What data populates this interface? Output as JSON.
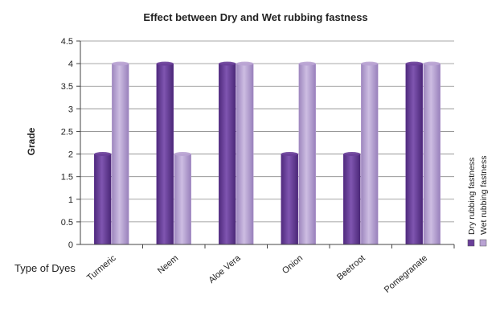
{
  "chart_data": {
    "type": "bar",
    "title": "Effect between Dry  and Wet rubbing fastness",
    "xlabel": "Type of Dyes",
    "ylabel": "Grade",
    "categories": [
      "Turmeric",
      "Neem",
      "Aloe Vera",
      "Onion",
      "Beetroot",
      "Pomegranate"
    ],
    "series": [
      {
        "name": "Dry rubbing fastness",
        "values": [
          2,
          4,
          4,
          2,
          2,
          4
        ],
        "color": "#6a3f99"
      },
      {
        "name": "Wet rubbing fastness",
        "values": [
          4,
          2,
          4,
          4,
          4,
          4
        ],
        "color": "#b9a3d3"
      }
    ],
    "ylim": [
      0,
      4.5
    ],
    "yticks": [
      "0",
      "0.5",
      "1",
      "1.5",
      "2",
      "2.5",
      "3",
      "3.5",
      "4",
      "4.5"
    ],
    "grid": true,
    "legend_position": "right"
  }
}
